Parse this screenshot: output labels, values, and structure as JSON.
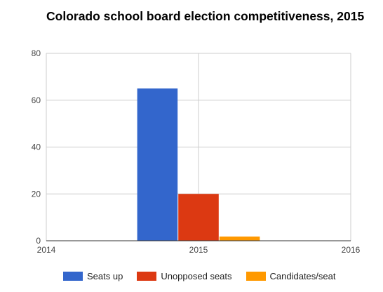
{
  "chart_data": {
    "type": "bar",
    "title": "Colorado school board election competitiveness, 2015",
    "x": [
      2015
    ],
    "x_ticks": [
      "2014",
      "2015",
      "2016"
    ],
    "xlim": [
      2014,
      2016
    ],
    "ylim": [
      0,
      80
    ],
    "y_ticks": [
      "0",
      "20",
      "40",
      "60",
      "80"
    ],
    "grid": true,
    "legend_position": "bottom",
    "series": [
      {
        "name": "Seats up",
        "values": [
          65
        ],
        "color": "#3366cc"
      },
      {
        "name": "Unopposed seats",
        "values": [
          20
        ],
        "color": "#dc3912"
      },
      {
        "name": "Candidates/seat",
        "values": [
          1.8
        ],
        "color": "#ff9900"
      }
    ]
  }
}
